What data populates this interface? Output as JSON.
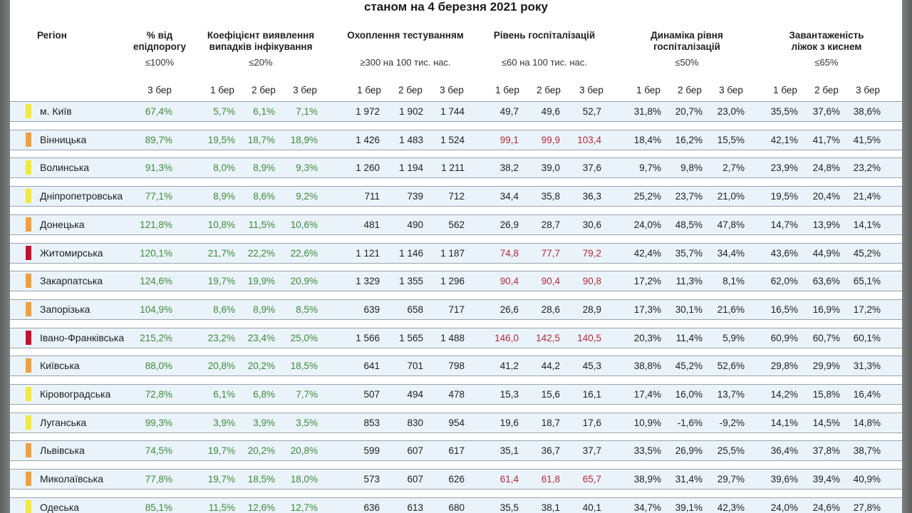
{
  "title": "станом на 4 березня 2021 року",
  "headers": {
    "region": "Регіон",
    "epi_line1": "% від",
    "epi_line2": "епідпорогу",
    "epi_sub": "≤100%",
    "coef_line1": "Коефіцієнт виявлення",
    "coef_line2": "випадків інфікування",
    "coef_sub": "≤20%",
    "test_line1": "Охоплення тестуванням",
    "test_sub": "≥300 на 100 тис. нас.",
    "hosp_line1": "Рівень госпіталізацій",
    "hosp_sub": "≤60 на 100 тис. нас.",
    "dyn_line1": "Динаміка рівня",
    "dyn_line2": "госпіталізацій",
    "dyn_sub": "≤50%",
    "beds_line1": "Завантаженість",
    "beds_line2": "ліжок з киснем",
    "beds_sub": "≤65%"
  },
  "week_labels": {
    "epi": "3 бер",
    "w1": "1 бер",
    "w2": "2 бер",
    "w3": "3 бер"
  },
  "colors": {
    "yellow": "#f2ea3a",
    "orange": "#f0a040",
    "red": "#c8102e",
    "green_text": "#3d8a3a",
    "red_text": "#b22a3a"
  },
  "rows": [
    {
      "region": "м. Київ",
      "marker": "yellow",
      "epi": "67,4%",
      "coef": [
        "5,7%",
        "6,1%",
        "7,1%"
      ],
      "test": [
        "1 972",
        "1 902",
        "1 744"
      ],
      "hosp": [
        "49,7",
        "49,6",
        "52,7"
      ],
      "hosp_red": false,
      "dyn": [
        "31,8%",
        "20,7%",
        "23,0%"
      ],
      "beds": [
        "35,5%",
        "37,6%",
        "38,6%"
      ]
    },
    {
      "region": "Вінницька",
      "marker": "orange",
      "epi": "89,7%",
      "coef": [
        "19,5%",
        "18,7%",
        "18,9%"
      ],
      "test": [
        "1 426",
        "1 483",
        "1 524"
      ],
      "hosp": [
        "99,1",
        "99,9",
        "103,4"
      ],
      "hosp_red": true,
      "dyn": [
        "18,4%",
        "16,2%",
        "15,5%"
      ],
      "beds": [
        "42,1%",
        "41,7%",
        "41,5%"
      ]
    },
    {
      "region": "Волинська",
      "marker": "yellow",
      "epi": "91,3%",
      "coef": [
        "8,0%",
        "8,9%",
        "9,3%"
      ],
      "test": [
        "1 260",
        "1 194",
        "1 211"
      ],
      "hosp": [
        "38,2",
        "39,0",
        "37,6"
      ],
      "hosp_red": false,
      "dyn": [
        "9,7%",
        "9,8%",
        "2,7%"
      ],
      "beds": [
        "23,9%",
        "24,8%",
        "23,2%"
      ]
    },
    {
      "region": "Дніпропетровська",
      "marker": "yellow",
      "epi": "77,1%",
      "coef": [
        "8,9%",
        "8,6%",
        "9,2%"
      ],
      "test": [
        "711",
        "739",
        "712"
      ],
      "hosp": [
        "34,4",
        "35,8",
        "36,3"
      ],
      "hosp_red": false,
      "dyn": [
        "25,2%",
        "23,7%",
        "21,0%"
      ],
      "beds": [
        "19,5%",
        "20,4%",
        "21,4%"
      ]
    },
    {
      "region": "Донецька",
      "marker": "orange",
      "epi": "121,8%",
      "coef": [
        "10,8%",
        "11,5%",
        "10,6%"
      ],
      "test": [
        "481",
        "490",
        "562"
      ],
      "hosp": [
        "26,9",
        "28,7",
        "30,6"
      ],
      "hosp_red": false,
      "dyn": [
        "24,0%",
        "48,5%",
        "47,8%"
      ],
      "beds": [
        "14,7%",
        "13,9%",
        "14,1%"
      ]
    },
    {
      "region": "Житомирська",
      "marker": "red",
      "epi": "120,1%",
      "coef": [
        "21,7%",
        "22,2%",
        "22,6%"
      ],
      "test": [
        "1 121",
        "1 146",
        "1 187"
      ],
      "hosp": [
        "74,8",
        "77,7",
        "79,2"
      ],
      "hosp_red": true,
      "dyn": [
        "42,4%",
        "35,7%",
        "34,4%"
      ],
      "beds": [
        "43,6%",
        "44,9%",
        "45,2%"
      ]
    },
    {
      "region": "Закарпатська",
      "marker": "orange",
      "epi": "124,6%",
      "coef": [
        "19,7%",
        "19,9%",
        "20,9%"
      ],
      "test": [
        "1 329",
        "1 355",
        "1 296"
      ],
      "hosp": [
        "90,4",
        "90,4",
        "90,8"
      ],
      "hosp_red": true,
      "dyn": [
        "17,2%",
        "11,3%",
        "8,1%"
      ],
      "beds": [
        "62,0%",
        "63,6%",
        "65,1%"
      ]
    },
    {
      "region": "Запорізька",
      "marker": "orange",
      "epi": "104,9%",
      "coef": [
        "8,6%",
        "8,9%",
        "8,5%"
      ],
      "test": [
        "639",
        "658",
        "717"
      ],
      "hosp": [
        "26,6",
        "28,6",
        "28,9"
      ],
      "hosp_red": false,
      "dyn": [
        "17,3%",
        "30,1%",
        "21,6%"
      ],
      "beds": [
        "16,5%",
        "16,9%",
        "17,2%"
      ]
    },
    {
      "region": "Івано-Франківська",
      "marker": "red",
      "epi": "215,2%",
      "coef": [
        "23,2%",
        "23,4%",
        "25,0%"
      ],
      "test": [
        "1 566",
        "1 565",
        "1 488"
      ],
      "hosp": [
        "146,0",
        "142,5",
        "140,5"
      ],
      "hosp_red": true,
      "dyn": [
        "20,3%",
        "11,4%",
        "5,9%"
      ],
      "beds": [
        "60,9%",
        "60,7%",
        "60,1%"
      ]
    },
    {
      "region": "Київська",
      "marker": "orange",
      "epi": "88,0%",
      "coef": [
        "20,8%",
        "20,2%",
        "18,5%"
      ],
      "test": [
        "641",
        "701",
        "798"
      ],
      "hosp": [
        "41,2",
        "44,2",
        "45,3"
      ],
      "hosp_red": false,
      "dyn": [
        "38,8%",
        "45,2%",
        "52,6%"
      ],
      "beds": [
        "29,8%",
        "29,9%",
        "31,3%"
      ]
    },
    {
      "region": "Кіровоградська",
      "marker": "yellow",
      "epi": "72,8%",
      "coef": [
        "6,1%",
        "6,8%",
        "7,7%"
      ],
      "test": [
        "507",
        "494",
        "478"
      ],
      "hosp": [
        "15,3",
        "15,6",
        "16,1"
      ],
      "hosp_red": false,
      "dyn": [
        "17,4%",
        "16,0%",
        "13,7%"
      ],
      "beds": [
        "14,2%",
        "15,8%",
        "16,4%"
      ]
    },
    {
      "region": "Луганська",
      "marker": "yellow",
      "epi": "99,3%",
      "coef": [
        "3,9%",
        "3,9%",
        "3,5%"
      ],
      "test": [
        "853",
        "830",
        "954"
      ],
      "hosp": [
        "19,6",
        "18,7",
        "17,6"
      ],
      "hosp_red": false,
      "dyn": [
        "10,9%",
        "-1,6%",
        "-9,2%"
      ],
      "beds": [
        "14,1%",
        "14,5%",
        "14,8%"
      ]
    },
    {
      "region": "Львівська",
      "marker": "orange",
      "epi": "74,5%",
      "coef": [
        "19,7%",
        "20,2%",
        "20,8%"
      ],
      "test": [
        "599",
        "607",
        "617"
      ],
      "hosp": [
        "35,1",
        "36,7",
        "37,7"
      ],
      "hosp_red": false,
      "dyn": [
        "33,5%",
        "26,9%",
        "25,5%"
      ],
      "beds": [
        "36,4%",
        "37,8%",
        "38,7%"
      ]
    },
    {
      "region": "Миколаївська",
      "marker": "orange",
      "epi": "77,8%",
      "coef": [
        "19,7%",
        "18,5%",
        "18,0%"
      ],
      "test": [
        "573",
        "607",
        "626"
      ],
      "hosp": [
        "61,4",
        "61,8",
        "65,7"
      ],
      "hosp_red": true,
      "dyn": [
        "38,9%",
        "31,4%",
        "29,7%"
      ],
      "beds": [
        "39,6%",
        "39,4%",
        "40,9%"
      ]
    },
    {
      "region": "Одеська",
      "marker": "yellow",
      "epi": "85,1%",
      "coef": [
        "11,5%",
        "12,6%",
        "12,7%"
      ],
      "test": [
        "636",
        "613",
        "680"
      ],
      "hosp": [
        "35,5",
        "38,1",
        "40,1"
      ],
      "hosp_red": false,
      "dyn": [
        "34,7%",
        "39,1%",
        "42,3%"
      ],
      "beds": [
        "24,0%",
        "24,6%",
        "27,8%"
      ]
    }
  ]
}
